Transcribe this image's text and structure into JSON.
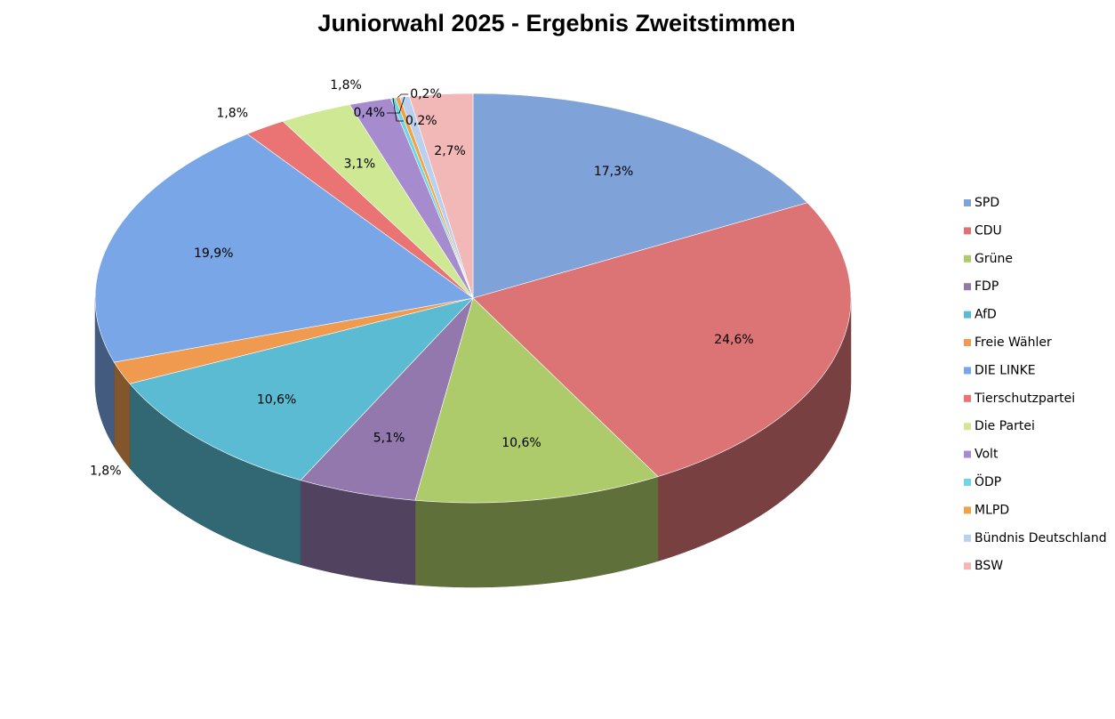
{
  "chart_data": {
    "type": "pie3d",
    "title": "Juniorwahl 2025 - Ergebnis Zweitstimmen",
    "categories": [
      "SPD",
      "CDU",
      "Grüne",
      "FDP",
      "AfD",
      "Freie Wähler",
      "DIE LINKE",
      "Tierschutzpartei",
      "Die Partei",
      "Volt",
      "ÖDP",
      "MLPD",
      "Bündnis Deutschland",
      "BSW"
    ],
    "values": [
      17.3,
      24.6,
      10.6,
      5.1,
      10.6,
      1.8,
      19.9,
      1.8,
      3.1,
      1.8,
      0.2,
      0.2,
      0.4,
      2.7
    ],
    "value_labels": [
      "17,3%",
      "24,6%",
      "10,6%",
      "5,1%",
      "10,6%",
      "1,8%",
      "19,9%",
      "1,8%",
      "3,1%",
      "1,8%",
      "0,2%",
      "0,2%",
      "0,4%",
      "2,7%"
    ],
    "colors": [
      "#7fa2d8",
      "#dc7476",
      "#aecb6c",
      "#9378ad",
      "#5bbbd3",
      "#ef9a4e",
      "#78a6e6",
      "#ea7474",
      "#cfe893",
      "#a68bcf",
      "#6ed5e6",
      "#f0a246",
      "#bad0ef",
      "#f2b8b8"
    ],
    "legend_position": "right"
  }
}
